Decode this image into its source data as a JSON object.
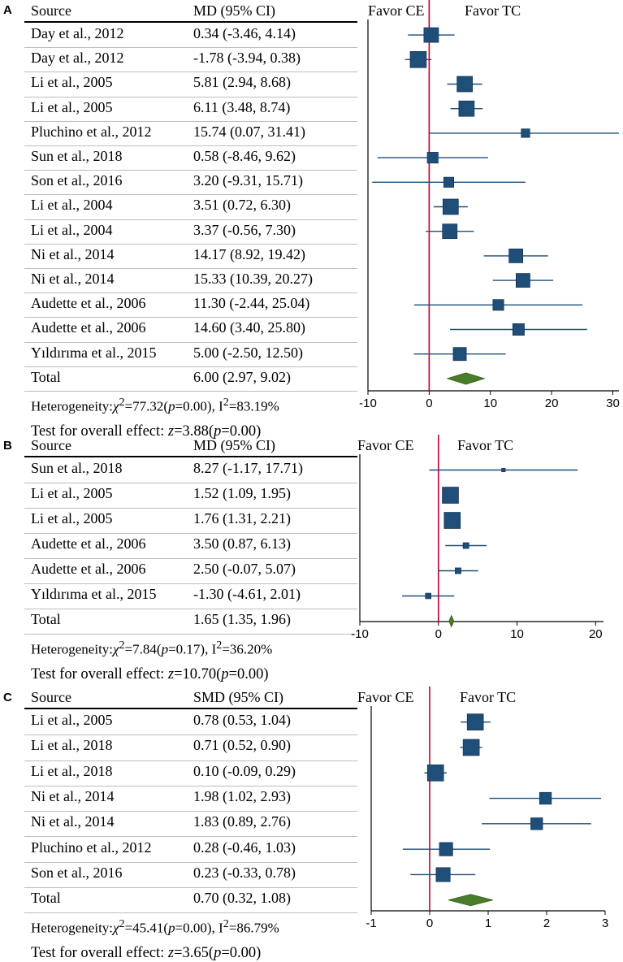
{
  "favor_left": "Favor CE",
  "favor_right": "Favor TC",
  "chart_data": [
    {
      "type": "forest",
      "panel_label": "A",
      "col_source": "Source",
      "col_effect": "MD (95% CI)",
      "xlim": [
        -10,
        31
      ],
      "ticks": [
        "-10",
        "0",
        "10",
        "20",
        "30"
      ],
      "colors": {
        "marker": "#1f4e79",
        "ci": "#1f4e79",
        "diamond": "#4a7d2a",
        "ref_line": "#c00030"
      },
      "studies": [
        {
          "source": "Day et al., 2012",
          "ci_text": "0.34 (-3.46, 4.14)",
          "est": 0.34,
          "lo": -3.46,
          "hi": 4.14,
          "weight": 7.5
        },
        {
          "source": "Day et al., 2012",
          "ci_text": "-1.78 (-3.94, 0.38)",
          "est": -1.78,
          "lo": -3.94,
          "hi": 0.38,
          "weight": 8.5
        },
        {
          "source": "Li et al., 2005",
          "ci_text": "5.81 (2.94, 8.68)",
          "est": 5.81,
          "lo": 2.94,
          "hi": 8.68,
          "weight": 8
        },
        {
          "source": "Li et al., 2005",
          "ci_text": "6.11 (3.48, 8.74)",
          "est": 6.11,
          "lo": 3.48,
          "hi": 8.74,
          "weight": 8
        },
        {
          "source": "Pluchino et al., 2012",
          "ci_text": "15.74 (0.07, 31.41)",
          "est": 15.74,
          "lo": 0.07,
          "hi": 31.41,
          "weight": 3.5
        },
        {
          "source": "Sun et al., 2018",
          "ci_text": "0.58 (-8.46, 9.62)",
          "est": 0.58,
          "lo": -8.46,
          "hi": 9.62,
          "weight": 5
        },
        {
          "source": "Son et al., 2016",
          "ci_text": "3.20 (-9.31, 15.71)",
          "est": 3.2,
          "lo": -9.31,
          "hi": 15.71,
          "weight": 4.5
        },
        {
          "source": "Li et al., 2004",
          "ci_text": "3.51 (0.72, 6.30)",
          "est": 3.51,
          "lo": 0.72,
          "hi": 6.3,
          "weight": 8
        },
        {
          "source": "Li et al., 2004",
          "ci_text": "3.37 (-0.56, 7.30)",
          "est": 3.37,
          "lo": -0.56,
          "hi": 7.3,
          "weight": 7.5
        },
        {
          "source": "Ni et al., 2014",
          "ci_text": "14.17 (8.92, 19.42)",
          "est": 14.17,
          "lo": 8.92,
          "hi": 19.42,
          "weight": 7
        },
        {
          "source": "Ni et al., 2014",
          "ci_text": "15.33 (10.39, 20.27)",
          "est": 15.33,
          "lo": 10.39,
          "hi": 20.27,
          "weight": 7
        },
        {
          "source": "Audette et al., 2006",
          "ci_text": "11.30 (-2.44, 25.04)",
          "est": 11.3,
          "lo": -2.44,
          "hi": 25.04,
          "weight": 5
        },
        {
          "source": "Audette et al., 2006",
          "ci_text": "14.60 (3.40, 25.80)",
          "est": 14.6,
          "lo": 3.4,
          "hi": 25.8,
          "weight": 5.5
        },
        {
          "source": "Yıldırıma et al., 2015",
          "ci_text": "5.00 (-2.50, 12.50)",
          "est": 5.0,
          "lo": -2.5,
          "hi": 12.5,
          "weight": 6.5
        }
      ],
      "total": {
        "source": "Total",
        "ci_text": "6.00 (2.97, 9.02)",
        "est": 6.0,
        "lo": 2.97,
        "hi": 9.02
      },
      "heterogeneity": {
        "prefix": "Heterogeneity:",
        "chi": "χ",
        "chi_sup": "2",
        "stat": "=77.32(",
        "p": "p",
        "p_val": "=0.00), I",
        "i_sup": "2",
        "i_val": "=83.19%"
      },
      "test": {
        "prefix": "Test for overall effect: ",
        "z": "z",
        "z_val": "=3.88(",
        "p": "p",
        "p_val": "=0.00)"
      }
    },
    {
      "type": "forest",
      "panel_label": "B",
      "col_source": "Source",
      "col_effect": "MD (95% CI)",
      "xlim": [
        -10,
        21
      ],
      "ticks": [
        "-10",
        "0",
        "10",
        "20"
      ],
      "colors": {
        "marker": "#1f4e79",
        "ci": "#1f4e79",
        "diamond": "#4a7d2a",
        "ref_line": "#c00030"
      },
      "studies": [
        {
          "source": "Sun et al., 2018",
          "ci_text": "8.27 (-1.17, 17.71)",
          "est": 8.27,
          "lo": -1.17,
          "hi": 17.71,
          "weight": 0.3
        },
        {
          "source": "Li et al., 2005",
          "ci_text": "1.52 (1.09, 1.95)",
          "est": 1.52,
          "lo": 1.09,
          "hi": 1.95,
          "weight": 10
        },
        {
          "source": "Li et al., 2005",
          "ci_text": "1.76 (1.31, 2.21)",
          "est": 1.76,
          "lo": 1.31,
          "hi": 2.21,
          "weight": 10
        },
        {
          "source": "Audette et al., 2006",
          "ci_text": "3.50 (0.87, 6.13)",
          "est": 3.5,
          "lo": 0.87,
          "hi": 6.13,
          "weight": 2
        },
        {
          "source": "Audette et al., 2006",
          "ci_text": "2.50 (-0.07, 5.07)",
          "est": 2.5,
          "lo": -0.07,
          "hi": 5.07,
          "weight": 2
        },
        {
          "source": "Yıldırıma et al., 2015",
          "ci_text": "-1.30 (-4.61, 2.01)",
          "est": -1.3,
          "lo": -4.61,
          "hi": 2.01,
          "weight": 1.8
        }
      ],
      "total": {
        "source": "Total",
        "ci_text": "1.65 (1.35, 1.96)",
        "est": 1.65,
        "lo": 1.35,
        "hi": 1.96
      },
      "heterogeneity": {
        "prefix": "Heterogeneity:",
        "chi": "χ",
        "chi_sup": "2",
        "stat": "=7.84(",
        "p": "p",
        "p_val": "=0.17), I",
        "i_sup": "2",
        "i_val": "=36.20%"
      },
      "test": {
        "prefix": "Test for overall effect: ",
        "z": "z",
        "z_val": "=10.70(",
        "p": "p",
        "p_val": "=0.00)"
      }
    },
    {
      "type": "forest",
      "panel_label": "C",
      "col_source": "Source",
      "col_effect": "SMD (95% CI)",
      "xlim": [
        -1,
        3
      ],
      "ticks": [
        "-1",
        "0",
        "1",
        "2",
        "3"
      ],
      "colors": {
        "marker": "#1f4e79",
        "ci": "#1f4e79",
        "diamond": "#4a7d2a",
        "ref_line": "#c00030"
      },
      "studies": [
        {
          "source": "Li et al., 2005",
          "ci_text": "0.78 (0.53, 1.04)",
          "est": 0.78,
          "lo": 0.53,
          "hi": 1.04,
          "weight": 9
        },
        {
          "source": "Li et al., 2018",
          "ci_text": "0.71 (0.52, 0.90)",
          "est": 0.71,
          "lo": 0.52,
          "hi": 0.9,
          "weight": 9
        },
        {
          "source": "Li et al., 2018",
          "ci_text": "0.10 (-0.09, 0.29)",
          "est": 0.1,
          "lo": -0.09,
          "hi": 0.29,
          "weight": 9
        },
        {
          "source": "Ni et al., 2014",
          "ci_text": "1.98 (1.02, 2.93)",
          "est": 1.98,
          "lo": 1.02,
          "hi": 2.93,
          "weight": 6
        },
        {
          "source": "Ni et al., 2014",
          "ci_text": "1.83 (0.89, 2.76)",
          "est": 1.83,
          "lo": 0.89,
          "hi": 2.76,
          "weight": 6
        },
        {
          "source": "Pluchino et al., 2012",
          "ci_text": "0.28 (-0.46, 1.03)",
          "est": 0.28,
          "lo": -0.46,
          "hi": 1.03,
          "weight": 7
        },
        {
          "source": "Son et al., 2016",
          "ci_text": "0.23 (-0.33, 0.78)",
          "est": 0.23,
          "lo": -0.33,
          "hi": 0.78,
          "weight": 7.5
        }
      ],
      "total": {
        "source": "Total",
        "ci_text": "0.70 (0.32, 1.08)",
        "est": 0.7,
        "lo": 0.32,
        "hi": 1.08
      },
      "heterogeneity": {
        "prefix": "Heterogeneity:",
        "chi": "χ",
        "chi_sup": "2",
        "stat": "=45.41(",
        "p": "p",
        "p_val": "=0.00), I",
        "i_sup": "2",
        "i_val": "=86.79%"
      },
      "test": {
        "prefix": "Test for overall effect: ",
        "z": "z",
        "z_val": "=3.65(",
        "p": "p",
        "p_val": "=0.00)"
      }
    }
  ]
}
